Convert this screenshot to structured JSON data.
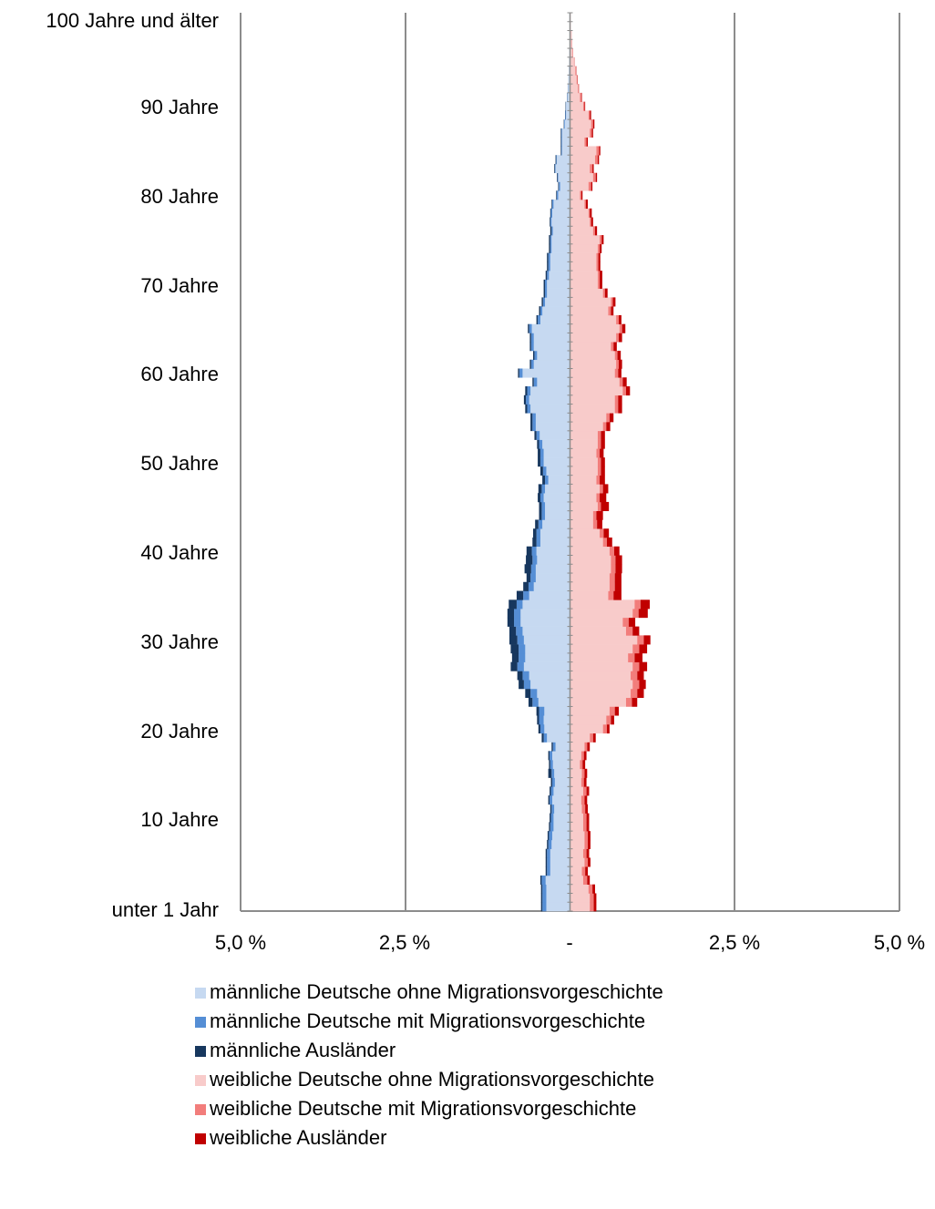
{
  "chart_data": {
    "type": "bar",
    "orientation": "horizontal-population-pyramid",
    "title": "",
    "y_tick_labels": [
      "100 Jahre und älter",
      "90 Jahre",
      "80 Jahre",
      "70 Jahre",
      "60 Jahre",
      "50 Jahre",
      "40 Jahre",
      "30 Jahre",
      "20 Jahre",
      "10 Jahre",
      "unter 1 Jahr"
    ],
    "x_tick_labels": [
      "5,0 %",
      "2,5 %",
      "-",
      "2,5 %",
      "5,0 %"
    ],
    "xlim": [
      -5.0,
      5.0
    ],
    "grid": true,
    "legend_position": "bottom",
    "ages": [
      0,
      1,
      2,
      3,
      4,
      5,
      6,
      7,
      8,
      9,
      10,
      11,
      12,
      13,
      14,
      15,
      16,
      17,
      18,
      19,
      20,
      21,
      22,
      23,
      24,
      25,
      26,
      27,
      28,
      29,
      30,
      31,
      32,
      33,
      34,
      35,
      36,
      37,
      38,
      39,
      40,
      41,
      42,
      43,
      44,
      45,
      46,
      47,
      48,
      49,
      50,
      51,
      52,
      53,
      54,
      55,
      56,
      57,
      58,
      59,
      60,
      61,
      62,
      63,
      64,
      65,
      66,
      67,
      68,
      69,
      70,
      71,
      72,
      73,
      74,
      75,
      76,
      77,
      78,
      79,
      80,
      81,
      82,
      83,
      84,
      85,
      86,
      87,
      88,
      89,
      90,
      91,
      92,
      93,
      94,
      95,
      96,
      97,
      98,
      99,
      100
    ],
    "series": [
      {
        "name": "männliche Deutsche ohne Migrationsvorgeschichte",
        "color": "#c6d9f1",
        "values": [
          0.36,
          0.36,
          0.36,
          0.37,
          0.3,
          0.3,
          0.3,
          0.28,
          0.27,
          0.25,
          0.25,
          0.24,
          0.27,
          0.25,
          0.23,
          0.24,
          0.26,
          0.27,
          0.22,
          0.35,
          0.39,
          0.4,
          0.39,
          0.48,
          0.5,
          0.6,
          0.62,
          0.7,
          0.68,
          0.68,
          0.7,
          0.72,
          0.75,
          0.75,
          0.72,
          0.62,
          0.55,
          0.52,
          0.52,
          0.5,
          0.51,
          0.45,
          0.45,
          0.42,
          0.38,
          0.38,
          0.4,
          0.38,
          0.33,
          0.36,
          0.4,
          0.4,
          0.42,
          0.46,
          0.52,
          0.52,
          0.6,
          0.62,
          0.6,
          0.5,
          0.72,
          0.55,
          0.5,
          0.55,
          0.55,
          0.58,
          0.45,
          0.42,
          0.38,
          0.35,
          0.35,
          0.32,
          0.3,
          0.3,
          0.28,
          0.28,
          0.26,
          0.28,
          0.27,
          0.25,
          0.18,
          0.15,
          0.18,
          0.22,
          0.2,
          0.12,
          0.12,
          0.12,
          0.08,
          0.06,
          0.06,
          0.04,
          0.03,
          0.02,
          0.015,
          0.01,
          0.008,
          0.005,
          0.004,
          0.003,
          0.01
        ]
      },
      {
        "name": "männliche Deutsche mit Migrationsvorgeschichte",
        "color": "#558ed5",
        "values": [
          0.06,
          0.06,
          0.06,
          0.06,
          0.05,
          0.05,
          0.05,
          0.05,
          0.05,
          0.05,
          0.04,
          0.04,
          0.04,
          0.04,
          0.04,
          0.04,
          0.04,
          0.04,
          0.04,
          0.05,
          0.06,
          0.07,
          0.08,
          0.09,
          0.1,
          0.1,
          0.1,
          0.1,
          0.1,
          0.1,
          0.1,
          0.1,
          0.1,
          0.1,
          0.09,
          0.09,
          0.08,
          0.08,
          0.07,
          0.07,
          0.07,
          0.06,
          0.06,
          0.06,
          0.05,
          0.05,
          0.05,
          0.05,
          0.05,
          0.05,
          0.05,
          0.05,
          0.05,
          0.05,
          0.05,
          0.05,
          0.05,
          0.05,
          0.05,
          0.05,
          0.05,
          0.04,
          0.04,
          0.04,
          0.04,
          0.04,
          0.04,
          0.03,
          0.03,
          0.03,
          0.03,
          0.03,
          0.03,
          0.03,
          0.02,
          0.02,
          0.02,
          0.02,
          0.02,
          0.02,
          0.02,
          0.02,
          0.01,
          0.01,
          0.01,
          0.01,
          0.01,
          0.01,
          0.01,
          0.01,
          0.005,
          0.005,
          0.003,
          0.002,
          0.001,
          0.001,
          0.001,
          0.001,
          0.0,
          0.0,
          0.0
        ]
      },
      {
        "name": "männliche Ausländer",
        "color": "#17375e",
        "values": [
          0.02,
          0.02,
          0.02,
          0.02,
          0.02,
          0.02,
          0.02,
          0.02,
          0.02,
          0.02,
          0.02,
          0.02,
          0.02,
          0.02,
          0.02,
          0.05,
          0.02,
          0.02,
          0.02,
          0.03,
          0.03,
          0.03,
          0.04,
          0.06,
          0.08,
          0.08,
          0.08,
          0.1,
          0.1,
          0.12,
          0.12,
          0.1,
          0.1,
          0.1,
          0.12,
          0.1,
          0.08,
          0.06,
          0.1,
          0.1,
          0.08,
          0.06,
          0.05,
          0.05,
          0.04,
          0.04,
          0.04,
          0.05,
          0.04,
          0.04,
          0.04,
          0.04,
          0.03,
          0.03,
          0.03,
          0.03,
          0.03,
          0.03,
          0.03,
          0.02,
          0.02,
          0.02,
          0.02,
          0.02,
          0.02,
          0.02,
          0.02,
          0.02,
          0.02,
          0.02,
          0.02,
          0.02,
          0.02,
          0.02,
          0.02,
          0.02,
          0.02,
          0.01,
          0.01,
          0.01,
          0.01,
          0.01,
          0.01,
          0.01,
          0.01,
          0.01,
          0.01,
          0.01,
          0.005,
          0.005,
          0.005,
          0.003,
          0.002,
          0.001,
          0.001,
          0.001,
          0.0,
          0.0,
          0.0,
          0.0,
          0.0
        ]
      },
      {
        "name": "weibliche Deutsche ohne Migrationsvorgeschichte",
        "color": "#f8cbca",
        "values": [
          0.3,
          0.3,
          0.28,
          0.2,
          0.18,
          0.22,
          0.2,
          0.22,
          0.22,
          0.2,
          0.2,
          0.18,
          0.17,
          0.2,
          0.17,
          0.18,
          0.15,
          0.17,
          0.22,
          0.3,
          0.5,
          0.55,
          0.6,
          0.85,
          0.92,
          0.95,
          0.92,
          0.95,
          0.88,
          0.95,
          1.02,
          0.85,
          0.8,
          0.95,
          0.98,
          0.58,
          0.6,
          0.6,
          0.62,
          0.62,
          0.6,
          0.5,
          0.45,
          0.35,
          0.35,
          0.42,
          0.4,
          0.45,
          0.4,
          0.42,
          0.42,
          0.4,
          0.42,
          0.42,
          0.5,
          0.55,
          0.68,
          0.68,
          0.8,
          0.75,
          0.68,
          0.7,
          0.68,
          0.62,
          0.7,
          0.75,
          0.7,
          0.58,
          0.62,
          0.5,
          0.42,
          0.42,
          0.4,
          0.4,
          0.42,
          0.45,
          0.35,
          0.3,
          0.28,
          0.22,
          0.15,
          0.28,
          0.35,
          0.3,
          0.38,
          0.4,
          0.22,
          0.3,
          0.32,
          0.28,
          0.2,
          0.15,
          0.12,
          0.1,
          0.08,
          0.06,
          0.04,
          0.03,
          0.02,
          0.01,
          0.01
        ]
      },
      {
        "name": "weibliche Deutsche mit Migrationsvorgeschichte",
        "color": "#f27d7b",
        "values": [
          0.06,
          0.06,
          0.06,
          0.06,
          0.05,
          0.05,
          0.05,
          0.05,
          0.05,
          0.05,
          0.05,
          0.05,
          0.05,
          0.05,
          0.04,
          0.04,
          0.04,
          0.04,
          0.04,
          0.05,
          0.06,
          0.07,
          0.08,
          0.09,
          0.1,
          0.1,
          0.1,
          0.1,
          0.1,
          0.1,
          0.1,
          0.1,
          0.09,
          0.09,
          0.09,
          0.08,
          0.08,
          0.08,
          0.07,
          0.07,
          0.07,
          0.06,
          0.06,
          0.06,
          0.05,
          0.05,
          0.05,
          0.05,
          0.05,
          0.05,
          0.05,
          0.05,
          0.05,
          0.05,
          0.05,
          0.05,
          0.05,
          0.05,
          0.05,
          0.05,
          0.05,
          0.04,
          0.04,
          0.04,
          0.04,
          0.04,
          0.04,
          0.04,
          0.03,
          0.03,
          0.03,
          0.03,
          0.03,
          0.03,
          0.03,
          0.03,
          0.03,
          0.02,
          0.02,
          0.02,
          0.02,
          0.04,
          0.04,
          0.04,
          0.04,
          0.04,
          0.03,
          0.03,
          0.03,
          0.02,
          0.02,
          0.02,
          0.01,
          0.01,
          0.01,
          0.005,
          0.005,
          0.003,
          0.002,
          0.001,
          0.0
        ]
      },
      {
        "name": "weibliche Ausländer",
        "color": "#c00000",
        "values": [
          0.04,
          0.04,
          0.04,
          0.04,
          0.04,
          0.04,
          0.04,
          0.04,
          0.04,
          0.04,
          0.04,
          0.04,
          0.04,
          0.04,
          0.04,
          0.04,
          0.04,
          0.04,
          0.04,
          0.04,
          0.04,
          0.05,
          0.06,
          0.08,
          0.1,
          0.1,
          0.1,
          0.12,
          0.12,
          0.12,
          0.1,
          0.1,
          0.1,
          0.14,
          0.14,
          0.12,
          0.1,
          0.1,
          0.1,
          0.1,
          0.08,
          0.08,
          0.08,
          0.08,
          0.1,
          0.12,
          0.1,
          0.08,
          0.08,
          0.06,
          0.06,
          0.06,
          0.06,
          0.06,
          0.06,
          0.06,
          0.06,
          0.06,
          0.06,
          0.06,
          0.05,
          0.05,
          0.05,
          0.05,
          0.05,
          0.05,
          0.04,
          0.04,
          0.04,
          0.04,
          0.04,
          0.04,
          0.03,
          0.03,
          0.03,
          0.03,
          0.03,
          0.03,
          0.03,
          0.03,
          0.02,
          0.02,
          0.02,
          0.02,
          0.02,
          0.02,
          0.02,
          0.02,
          0.02,
          0.02,
          0.01,
          0.01,
          0.005,
          0.005,
          0.005,
          0.003,
          0.002,
          0.001,
          0.001,
          0.0,
          0.0
        ]
      }
    ]
  }
}
